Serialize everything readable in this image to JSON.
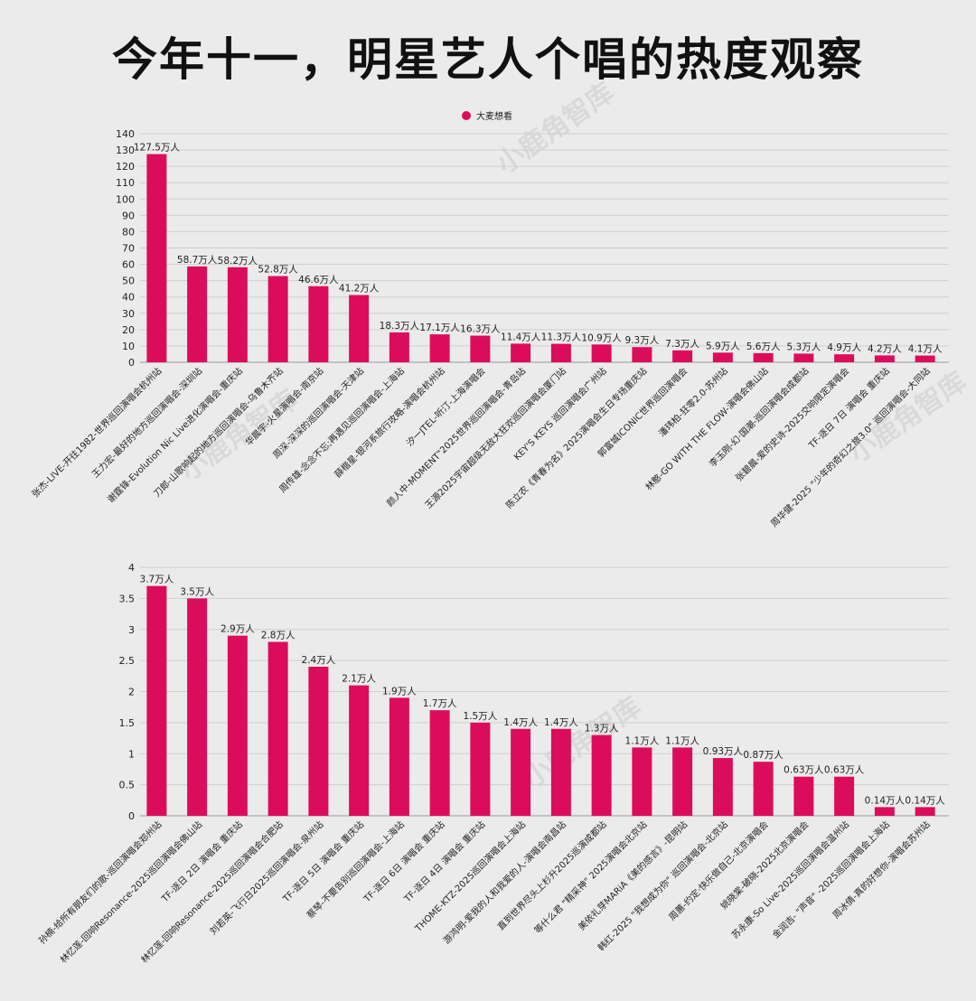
{
  "title": "今年十一，明星艺人个唱的热度观察",
  "bar_color": "#dc0c5c",
  "watermark": "小鹿角智库",
  "chart_data": [
    {
      "type": "bar",
      "legend": {
        "label": "大麦想看",
        "position": "top-center"
      },
      "ylim": [
        0,
        140
      ],
      "yticks": [
        0,
        10,
        20,
        30,
        40,
        50,
        60,
        70,
        80,
        90,
        100,
        110,
        120,
        130,
        140
      ],
      "ytick_labels": [
        "0",
        "10",
        "20",
        "30",
        "40",
        "50",
        "60",
        "70",
        "80",
        "90",
        "100",
        "110",
        "120",
        "130",
        "140"
      ],
      "grid": true,
      "categories": [
        "张杰-LIVE-开往1982-世界巡回演唱会杭州站",
        "王力宏-最好的地方巡回演唱会-深圳站",
        "谢霆锋-Evolution Nic Live进化演唱会-重庆站",
        "刀郎-山歌响起的地方巡回演唱会-乌鲁木齐站",
        "华晨宇-火星演唱会-南京站",
        "周深-深深的巡回演唱会-天津站",
        "周传雄-念念不忘;再遇见巡回演唱会-上海站",
        "薛楷星-银河系旅行攻略-演唱会杭州站",
        "汐一JTEL-听汀-上海演唱会",
        "颜人中-MOMENT\"2025世界巡回演唱会-青岛站",
        "王源2025宇宙超级无敌大狂欢巡回演唱会厦门站",
        "KEY'S KEYS 巡回演唱会广州站",
        "陈立农《青春为名》2025演唱会生日专场重庆站",
        "郭富城ICONIC世界巡回演唱会",
        "潘玮柏-狂零2.0-苏州站",
        "林憨-GO WITH THE FLOW-演唱会佛山站",
        "李玉刚-幻·国潮-巡回演唱会成都站",
        "张碧晨-爱的史诗-2025交响限定演唱会",
        "TF-逐日 7日 演唱会 重庆站",
        "周华健-2025 \"少年的奇幻之旅3.0\" 巡回演唱会-大同站"
      ],
      "values": [
        127.5,
        58.7,
        58.2,
        52.8,
        46.6,
        41.2,
        18.3,
        17.1,
        16.3,
        11.4,
        11.3,
        10.9,
        9.3,
        7.3,
        5.9,
        5.6,
        5.3,
        4.9,
        4.2,
        4.1
      ],
      "data_labels": [
        "127.5万人",
        "58.7万人",
        "58.2万人",
        "52.8万人",
        "46.6万人",
        "41.2万人",
        "18.3万人",
        "17.1万人",
        "16.3万人",
        "11.4万人",
        "11.3万人",
        "10.9万人",
        "9.3万人",
        "7.3万人",
        "5.9万人",
        "5.6万人",
        "5.3万人",
        "4.9万人",
        "4.2万人",
        "4.1万人"
      ]
    },
    {
      "type": "bar",
      "ylim": [
        0,
        4
      ],
      "yticks": [
        0,
        0.5,
        1,
        1.5,
        2,
        2.5,
        3,
        3.5,
        4
      ],
      "ytick_labels": [
        "0",
        "0.5",
        "1",
        "1.5",
        "2",
        "2.5",
        "3",
        "3.5",
        "4"
      ],
      "grid": true,
      "categories": [
        "孙楠-给所有朋友们的歌-巡回演唱会郑州站",
        "林忆莲-回响Resonance-2025巡回演唱会佛山站",
        "TF-逐日 2日 演唱会 重庆站",
        "林忆莲-回响Resonance-2025巡回演唱会合肥站",
        "刘若英-飞行日2025巡回演唱会-泉州站",
        "TF-逐日 5日 演唱会 重庆站",
        "蔡琴-不要告别巡回演唱会-上海站",
        "TF-逐日 6日 演唱会 重庆站",
        "TF-逐日 4日 演唱会 重庆站",
        "THOME-KTZ-2025巡回演唱会上海站",
        "游鸿明-爱我的人和我爱的人-演唱会南昌站",
        "直到世界尽头上杉升2025巡演成都站",
        "等什么君 \"精采神\" 2025演唱会北京站",
        "美依礼芽MARiA《美的感言》-昆明站",
        "韩红-2025 \"我想成为你\" 巡回演唱会-北京站",
        "周蕙-约定·快乐做自己-北京演唱会",
        "姚晓棠-破晓-2025北京演唱会",
        "苏永康-So Live-2025巡回演唱会温州站",
        "金润吉- \"声音\" -2025巡回演唱会上海站",
        "周冰倩-真的好想你-演唱会苏州站"
      ],
      "values": [
        3.7,
        3.5,
        2.9,
        2.8,
        2.4,
        2.1,
        1.9,
        1.7,
        1.5,
        1.4,
        1.4,
        1.3,
        1.1,
        1.1,
        0.93,
        0.87,
        0.63,
        0.63,
        0.14,
        0.14
      ],
      "data_labels": [
        "3.7万人",
        "3.5万人",
        "2.9万人",
        "2.8万人",
        "2.4万人",
        "2.1万人",
        "1.9万人",
        "1.7万人",
        "1.5万人",
        "1.4万人",
        "1.4万人",
        "1.3万人",
        "1.1万人",
        "1.1万人",
        "0.93万人",
        "0.87万人",
        "0.63万人",
        "0.63万人",
        "0.14万人",
        "0.14万人"
      ]
    }
  ]
}
